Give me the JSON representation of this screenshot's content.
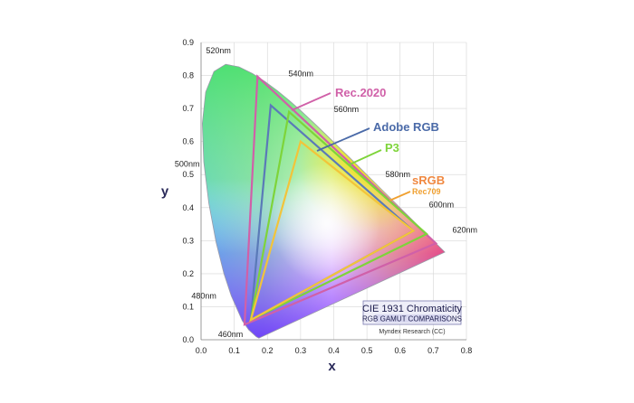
{
  "chart_data": {
    "type": "line",
    "xlabel": "x",
    "ylabel": "y",
    "xlim": [
      0,
      0.8
    ],
    "ylim": [
      0,
      0.9
    ],
    "x_ticks": [
      "0.0",
      "0.1",
      "0.2",
      "0.3",
      "0.4",
      "0.5",
      "0.6",
      "0.7",
      "0.8"
    ],
    "y_ticks": [
      "0.0",
      "0.1",
      "0.2",
      "0.3",
      "0.4",
      "0.5",
      "0.6",
      "0.7",
      "0.8",
      "0.9"
    ],
    "grid": true,
    "spectral_locus": [
      [
        0.1741,
        0.005
      ],
      [
        0.1666,
        0.0089
      ],
      [
        0.144,
        0.0297
      ],
      [
        0.1241,
        0.0578
      ],
      [
        0.0913,
        0.1327
      ],
      [
        0.0687,
        0.2007
      ],
      [
        0.0454,
        0.295
      ],
      [
        0.0235,
        0.4127
      ],
      [
        0.0082,
        0.5384
      ],
      [
        0.0039,
        0.6548
      ],
      [
        0.0139,
        0.7502
      ],
      [
        0.0389,
        0.812
      ],
      [
        0.0743,
        0.8338
      ],
      [
        0.1142,
        0.8262
      ],
      [
        0.1547,
        0.8059
      ],
      [
        0.1929,
        0.7816
      ],
      [
        0.2296,
        0.7543
      ],
      [
        0.2658,
        0.7243
      ],
      [
        0.3016,
        0.6923
      ],
      [
        0.3373,
        0.6589
      ],
      [
        0.3731,
        0.6245
      ],
      [
        0.4087,
        0.5896
      ],
      [
        0.4441,
        0.5547
      ],
      [
        0.4788,
        0.5202
      ],
      [
        0.5125,
        0.4866
      ],
      [
        0.5448,
        0.4544
      ],
      [
        0.5752,
        0.4242
      ],
      [
        0.6029,
        0.3965
      ],
      [
        0.627,
        0.3725
      ],
      [
        0.6482,
        0.3514
      ],
      [
        0.6658,
        0.334
      ],
      [
        0.6801,
        0.3197
      ],
      [
        0.6915,
        0.3083
      ],
      [
        0.7006,
        0.2993
      ],
      [
        0.7079,
        0.292
      ],
      [
        0.7347,
        0.2653
      ]
    ],
    "wavelength_labels": [
      {
        "label": "460nm",
        "x": 0.144,
        "y": 0.03
      },
      {
        "label": "480nm",
        "x": 0.091,
        "y": 0.133
      },
      {
        "label": "500nm",
        "x": 0.008,
        "y": 0.538
      },
      {
        "label": "520nm",
        "x": 0.074,
        "y": 0.834
      },
      {
        "label": "540nm",
        "x": 0.23,
        "y": 0.754
      },
      {
        "label": "560nm",
        "x": 0.373,
        "y": 0.624
      },
      {
        "label": "580nm",
        "x": 0.512,
        "y": 0.487
      },
      {
        "label": "600nm",
        "x": 0.627,
        "y": 0.373
      },
      {
        "label": "620nm",
        "x": 0.692,
        "y": 0.308
      }
    ],
    "series": [
      {
        "name": "Rec.2020",
        "color": "#d060a8",
        "x": [
          0.708,
          0.17,
          0.131
        ],
        "y": [
          0.292,
          0.797,
          0.046
        ]
      },
      {
        "name": "Adobe RGB",
        "color": "#5a7ab8",
        "x": [
          0.64,
          0.21,
          0.15
        ],
        "y": [
          0.33,
          0.71,
          0.06
        ]
      },
      {
        "name": "P3",
        "color": "#7ed43a",
        "x": [
          0.68,
          0.265,
          0.15
        ],
        "y": [
          0.32,
          0.69,
          0.06
        ]
      },
      {
        "name": "sRGB",
        "sublabel": "Rec709",
        "color": "#f2c43a",
        "x": [
          0.64,
          0.3,
          0.15
        ],
        "y": [
          0.33,
          0.6,
          0.06
        ]
      }
    ],
    "label_colors": {
      "Rec.2020": "#d060a8",
      "Adobe RGB": "#4a6aa8",
      "P3": "#7ed43a",
      "sRGB": "#f08840",
      "Rec709": "#f0a030"
    },
    "info_box": {
      "title": "CIE 1931 Chromaticity",
      "subtitle": "RGB GAMUT COMPARISONS",
      "credit": "Myndex Research (CC)"
    }
  }
}
